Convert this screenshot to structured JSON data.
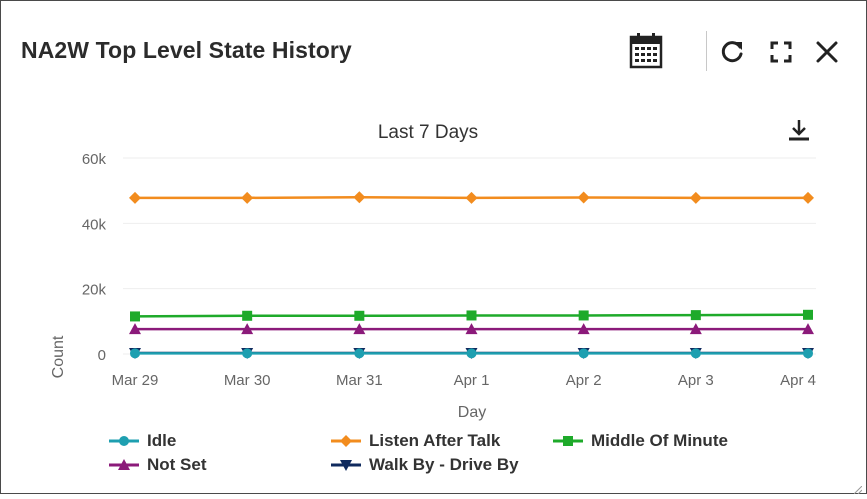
{
  "header": {
    "title": "NA2W Top Level State History",
    "calendar_icon": "calendar-icon",
    "refresh_icon": "refresh-icon",
    "expand_icon": "fullscreen-icon",
    "close_icon": "close-icon"
  },
  "download_icon": "download-icon",
  "colors": {
    "idle": "#1e9fb0",
    "listen_after_talk": "#f28c1e",
    "middle_of_minute": "#1eaa2a",
    "not_set": "#8b1a7a",
    "walk_by": "#0f2a5e",
    "axis_text": "#666666",
    "grid": "#eeeeee"
  },
  "chart_data": {
    "type": "line",
    "title": "Last 7 Days",
    "xlabel": "Day",
    "ylabel": "Count",
    "categories": [
      "Mar 29",
      "Mar 30",
      "Mar 31",
      "Apr 1",
      "Apr 2",
      "Apr 3",
      "Apr 4"
    ],
    "ylim": [
      0,
      60000
    ],
    "yticks": [
      0,
      20000,
      40000,
      60000
    ],
    "ytick_labels": [
      "0",
      "20k",
      "40k",
      "60k"
    ],
    "grid": true,
    "legend": "bottom",
    "series": [
      {
        "name": "Idle",
        "marker": "circle",
        "color": "#1e9fb0",
        "values": [
          200,
          200,
          200,
          200,
          200,
          200,
          200
        ]
      },
      {
        "name": "Listen After Talk",
        "marker": "diamond",
        "color": "#f28c1e",
        "values": [
          47800,
          47800,
          48000,
          47800,
          47900,
          47800,
          47800
        ]
      },
      {
        "name": "Middle Of Minute",
        "marker": "square",
        "color": "#1eaa2a",
        "values": [
          11500,
          11700,
          11700,
          11800,
          11800,
          11900,
          12000
        ]
      },
      {
        "name": "Not Set",
        "marker": "triangle",
        "color": "#8b1a7a",
        "values": [
          7600,
          7600,
          7600,
          7600,
          7600,
          7600,
          7600
        ]
      },
      {
        "name": "Walk By - Drive By",
        "marker": "triangle-down",
        "color": "#0f2a5e",
        "values": [
          300,
          300,
          300,
          300,
          300,
          300,
          300
        ]
      }
    ]
  }
}
